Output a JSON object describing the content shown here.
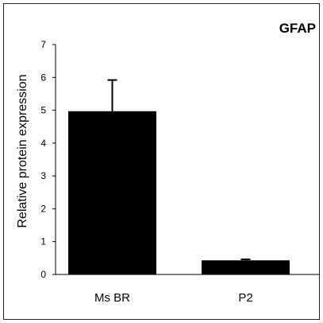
{
  "chart_data": {
    "type": "bar",
    "title": "GFAP",
    "xlabel": "",
    "ylabel": "Relative protein expression",
    "categories": [
      "Ms BR",
      "P2"
    ],
    "values": [
      4.97,
      0.43
    ],
    "error_bars": [
      0.95,
      0.03
    ],
    "ylim": [
      0,
      7
    ],
    "yticks": [
      "0",
      "1",
      "2",
      "3",
      "4",
      "5",
      "6",
      "7"
    ],
    "grid": false,
    "legend": "none",
    "bar_color": "#000000"
  }
}
